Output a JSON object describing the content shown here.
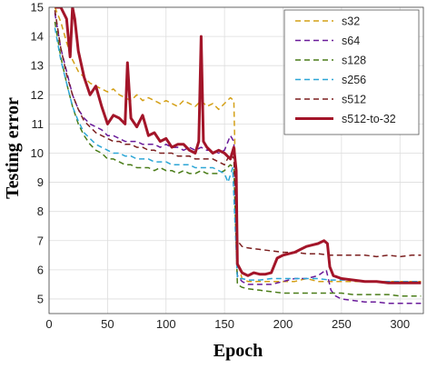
{
  "chart_data": {
    "type": "line",
    "xlabel": "Epoch",
    "ylabel": "Testing error",
    "xlim": [
      0,
      320
    ],
    "ylim": [
      4.5,
      15
    ],
    "xticks": [
      0,
      50,
      100,
      150,
      200,
      250,
      300
    ],
    "yticks": [
      5,
      6,
      7,
      8,
      9,
      10,
      11,
      12,
      13,
      14,
      15
    ],
    "grid": true,
    "legend_position": "top-right",
    "series": [
      {
        "name": "s32",
        "color": "#d4a017",
        "style": "dashed",
        "points": [
          [
            5,
            15
          ],
          [
            10,
            14.5
          ],
          [
            15,
            13.8
          ],
          [
            20,
            13.2
          ],
          [
            25,
            12.8
          ],
          [
            30,
            12.6
          ],
          [
            35,
            12.4
          ],
          [
            40,
            12.3
          ],
          [
            45,
            12.2
          ],
          [
            50,
            12.1
          ],
          [
            55,
            12.2
          ],
          [
            60,
            12.0
          ],
          [
            65,
            11.9
          ],
          [
            70,
            11.8
          ],
          [
            75,
            12.0
          ],
          [
            80,
            11.8
          ],
          [
            85,
            11.9
          ],
          [
            90,
            11.8
          ],
          [
            95,
            11.7
          ],
          [
            100,
            11.8
          ],
          [
            105,
            11.7
          ],
          [
            110,
            11.6
          ],
          [
            115,
            11.8
          ],
          [
            120,
            11.7
          ],
          [
            125,
            11.6
          ],
          [
            130,
            11.8
          ],
          [
            135,
            11.6
          ],
          [
            140,
            11.7
          ],
          [
            145,
            11.5
          ],
          [
            150,
            11.7
          ],
          [
            155,
            11.9
          ],
          [
            158,
            11.8
          ],
          [
            161,
            6.3
          ],
          [
            165,
            5.7
          ],
          [
            170,
            5.6
          ],
          [
            180,
            5.6
          ],
          [
            190,
            5.6
          ],
          [
            200,
            5.6
          ],
          [
            210,
            5.6
          ],
          [
            220,
            5.7
          ],
          [
            230,
            5.6
          ],
          [
            240,
            5.6
          ],
          [
            250,
            5.6
          ],
          [
            260,
            5.6
          ],
          [
            270,
            5.6
          ],
          [
            280,
            5.6
          ],
          [
            290,
            5.6
          ],
          [
            300,
            5.6
          ],
          [
            310,
            5.6
          ],
          [
            318,
            5.6
          ]
        ]
      },
      {
        "name": "s64",
        "color": "#6a1b9a",
        "style": "dashed",
        "points": [
          [
            5,
            14.8
          ],
          [
            10,
            13.6
          ],
          [
            15,
            12.8
          ],
          [
            20,
            12.0
          ],
          [
            25,
            11.5
          ],
          [
            30,
            11.2
          ],
          [
            35,
            11.0
          ],
          [
            40,
            10.9
          ],
          [
            45,
            10.8
          ],
          [
            50,
            10.6
          ],
          [
            55,
            10.6
          ],
          [
            60,
            10.5
          ],
          [
            65,
            10.4
          ],
          [
            70,
            10.4
          ],
          [
            75,
            10.4
          ],
          [
            80,
            10.3
          ],
          [
            85,
            10.3
          ],
          [
            90,
            10.3
          ],
          [
            95,
            10.2
          ],
          [
            100,
            10.3
          ],
          [
            105,
            10.2
          ],
          [
            110,
            10.2
          ],
          [
            115,
            10.1
          ],
          [
            120,
            10.2
          ],
          [
            125,
            10.1
          ],
          [
            130,
            10.2
          ],
          [
            135,
            10.1
          ],
          [
            140,
            10.1
          ],
          [
            145,
            10.0
          ],
          [
            150,
            10.1
          ],
          [
            155,
            10.6
          ],
          [
            158,
            10.4
          ],
          [
            161,
            5.8
          ],
          [
            165,
            5.6
          ],
          [
            170,
            5.5
          ],
          [
            180,
            5.5
          ],
          [
            190,
            5.5
          ],
          [
            200,
            5.6
          ],
          [
            210,
            5.7
          ],
          [
            220,
            5.7
          ],
          [
            230,
            5.8
          ],
          [
            237,
            6.0
          ],
          [
            241,
            5.3
          ],
          [
            245,
            5.1
          ],
          [
            250,
            5.0
          ],
          [
            260,
            4.95
          ],
          [
            270,
            4.9
          ],
          [
            280,
            4.9
          ],
          [
            290,
            4.85
          ],
          [
            300,
            4.85
          ],
          [
            310,
            4.85
          ],
          [
            318,
            4.85
          ]
        ]
      },
      {
        "name": "s128",
        "color": "#4a7c18",
        "style": "dashed",
        "points": [
          [
            5,
            14.5
          ],
          [
            10,
            13.3
          ],
          [
            15,
            12.4
          ],
          [
            20,
            11.6
          ],
          [
            25,
            11.0
          ],
          [
            30,
            10.6
          ],
          [
            35,
            10.3
          ],
          [
            40,
            10.1
          ],
          [
            45,
            10.0
          ],
          [
            50,
            9.8
          ],
          [
            55,
            9.8
          ],
          [
            60,
            9.7
          ],
          [
            65,
            9.6
          ],
          [
            70,
            9.6
          ],
          [
            75,
            9.5
          ],
          [
            80,
            9.5
          ],
          [
            85,
            9.5
          ],
          [
            90,
            9.4
          ],
          [
            95,
            9.5
          ],
          [
            100,
            9.4
          ],
          [
            105,
            9.4
          ],
          [
            110,
            9.3
          ],
          [
            115,
            9.4
          ],
          [
            120,
            9.3
          ],
          [
            125,
            9.3
          ],
          [
            130,
            9.4
          ],
          [
            135,
            9.3
          ],
          [
            140,
            9.3
          ],
          [
            145,
            9.3
          ],
          [
            150,
            9.4
          ],
          [
            155,
            9.6
          ],
          [
            158,
            9.5
          ],
          [
            161,
            5.5
          ],
          [
            165,
            5.4
          ],
          [
            170,
            5.35
          ],
          [
            180,
            5.3
          ],
          [
            190,
            5.25
          ],
          [
            200,
            5.2
          ],
          [
            210,
            5.2
          ],
          [
            220,
            5.2
          ],
          [
            230,
            5.2
          ],
          [
            240,
            5.2
          ],
          [
            250,
            5.2
          ],
          [
            260,
            5.15
          ],
          [
            270,
            5.15
          ],
          [
            280,
            5.15
          ],
          [
            290,
            5.15
          ],
          [
            300,
            5.1
          ],
          [
            310,
            5.1
          ],
          [
            318,
            5.1
          ]
        ]
      },
      {
        "name": "s256",
        "color": "#2ca6d6",
        "style": "dashed",
        "points": [
          [
            5,
            14.3
          ],
          [
            10,
            13.2
          ],
          [
            15,
            12.4
          ],
          [
            20,
            11.6
          ],
          [
            25,
            11.1
          ],
          [
            30,
            10.7
          ],
          [
            35,
            10.5
          ],
          [
            40,
            10.3
          ],
          [
            45,
            10.2
          ],
          [
            50,
            10.1
          ],
          [
            55,
            10.0
          ],
          [
            60,
            10.0
          ],
          [
            65,
            9.9
          ],
          [
            70,
            9.9
          ],
          [
            75,
            9.8
          ],
          [
            80,
            9.8
          ],
          [
            85,
            9.8
          ],
          [
            90,
            9.7
          ],
          [
            95,
            9.7
          ],
          [
            100,
            9.7
          ],
          [
            105,
            9.6
          ],
          [
            110,
            9.6
          ],
          [
            115,
            9.6
          ],
          [
            120,
            9.6
          ],
          [
            125,
            9.5
          ],
          [
            130,
            9.5
          ],
          [
            135,
            9.5
          ],
          [
            140,
            9.5
          ],
          [
            145,
            9.4
          ],
          [
            150,
            9.3
          ],
          [
            153,
            9.0
          ],
          [
            157,
            9.5
          ],
          [
            161,
            5.7
          ],
          [
            165,
            5.7
          ],
          [
            170,
            5.65
          ],
          [
            180,
            5.65
          ],
          [
            190,
            5.7
          ],
          [
            200,
            5.7
          ],
          [
            210,
            5.7
          ],
          [
            220,
            5.7
          ],
          [
            230,
            5.7
          ],
          [
            240,
            5.65
          ],
          [
            250,
            5.65
          ],
          [
            260,
            5.65
          ],
          [
            270,
            5.6
          ],
          [
            280,
            5.6
          ],
          [
            290,
            5.6
          ],
          [
            300,
            5.6
          ],
          [
            310,
            5.6
          ],
          [
            318,
            5.6
          ]
        ]
      },
      {
        "name": "s512",
        "color": "#7b1f1f",
        "style": "dashed",
        "points": [
          [
            5,
            14.9
          ],
          [
            10,
            13.6
          ],
          [
            15,
            12.7
          ],
          [
            20,
            12.0
          ],
          [
            25,
            11.5
          ],
          [
            30,
            11.1
          ],
          [
            35,
            10.9
          ],
          [
            40,
            10.7
          ],
          [
            45,
            10.6
          ],
          [
            50,
            10.5
          ],
          [
            55,
            10.4
          ],
          [
            60,
            10.4
          ],
          [
            65,
            10.3
          ],
          [
            70,
            10.3
          ],
          [
            75,
            10.2
          ],
          [
            80,
            10.2
          ],
          [
            85,
            10.1
          ],
          [
            90,
            10.1
          ],
          [
            95,
            10.0
          ],
          [
            100,
            10.0
          ],
          [
            105,
            10.0
          ],
          [
            110,
            9.9
          ],
          [
            115,
            9.9
          ],
          [
            120,
            9.9
          ],
          [
            125,
            9.8
          ],
          [
            130,
            9.8
          ],
          [
            135,
            9.8
          ],
          [
            140,
            9.8
          ],
          [
            145,
            9.7
          ],
          [
            150,
            9.6
          ],
          [
            155,
            10.0
          ],
          [
            158,
            9.8
          ],
          [
            161,
            7.0
          ],
          [
            165,
            6.8
          ],
          [
            170,
            6.75
          ],
          [
            180,
            6.7
          ],
          [
            190,
            6.65
          ],
          [
            200,
            6.6
          ],
          [
            210,
            6.6
          ],
          [
            220,
            6.55
          ],
          [
            230,
            6.55
          ],
          [
            240,
            6.5
          ],
          [
            250,
            6.5
          ],
          [
            260,
            6.5
          ],
          [
            270,
            6.5
          ],
          [
            280,
            6.45
          ],
          [
            290,
            6.5
          ],
          [
            300,
            6.45
          ],
          [
            310,
            6.5
          ],
          [
            318,
            6.5
          ]
        ]
      },
      {
        "name": "s512-to-32",
        "color": "#a31529",
        "style": "solid",
        "points": [
          [
            5,
            15
          ],
          [
            10,
            15
          ],
          [
            15,
            14.6
          ],
          [
            18,
            13.3
          ],
          [
            20,
            15
          ],
          [
            22,
            14.6
          ],
          [
            25,
            13.5
          ],
          [
            30,
            12.6
          ],
          [
            35,
            12.0
          ],
          [
            40,
            12.3
          ],
          [
            45,
            11.6
          ],
          [
            50,
            11.0
          ],
          [
            55,
            11.3
          ],
          [
            60,
            11.2
          ],
          [
            65,
            11.0
          ],
          [
            67,
            13.1
          ],
          [
            70,
            11.2
          ],
          [
            75,
            10.9
          ],
          [
            80,
            11.3
          ],
          [
            85,
            10.6
          ],
          [
            90,
            10.7
          ],
          [
            95,
            10.4
          ],
          [
            100,
            10.5
          ],
          [
            105,
            10.2
          ],
          [
            110,
            10.3
          ],
          [
            115,
            10.3
          ],
          [
            120,
            10.1
          ],
          [
            125,
            10.0
          ],
          [
            128,
            10.4
          ],
          [
            130,
            14.0
          ],
          [
            132,
            10.4
          ],
          [
            135,
            10.2
          ],
          [
            140,
            10.0
          ],
          [
            145,
            10.1
          ],
          [
            150,
            10.0
          ],
          [
            155,
            9.8
          ],
          [
            158,
            10.2
          ],
          [
            160,
            9.4
          ],
          [
            161,
            6.2
          ],
          [
            165,
            5.9
          ],
          [
            170,
            5.8
          ],
          [
            175,
            5.9
          ],
          [
            180,
            5.85
          ],
          [
            185,
            5.85
          ],
          [
            190,
            5.9
          ],
          [
            193,
            6.2
          ],
          [
            195,
            6.4
          ],
          [
            200,
            6.5
          ],
          [
            205,
            6.55
          ],
          [
            210,
            6.6
          ],
          [
            215,
            6.7
          ],
          [
            220,
            6.8
          ],
          [
            225,
            6.85
          ],
          [
            230,
            6.9
          ],
          [
            235,
            7.0
          ],
          [
            238,
            6.9
          ],
          [
            240,
            6.1
          ],
          [
            243,
            5.8
          ],
          [
            250,
            5.7
          ],
          [
            260,
            5.65
          ],
          [
            270,
            5.6
          ],
          [
            280,
            5.6
          ],
          [
            290,
            5.55
          ],
          [
            300,
            5.55
          ],
          [
            310,
            5.55
          ],
          [
            318,
            5.55
          ]
        ]
      }
    ]
  }
}
